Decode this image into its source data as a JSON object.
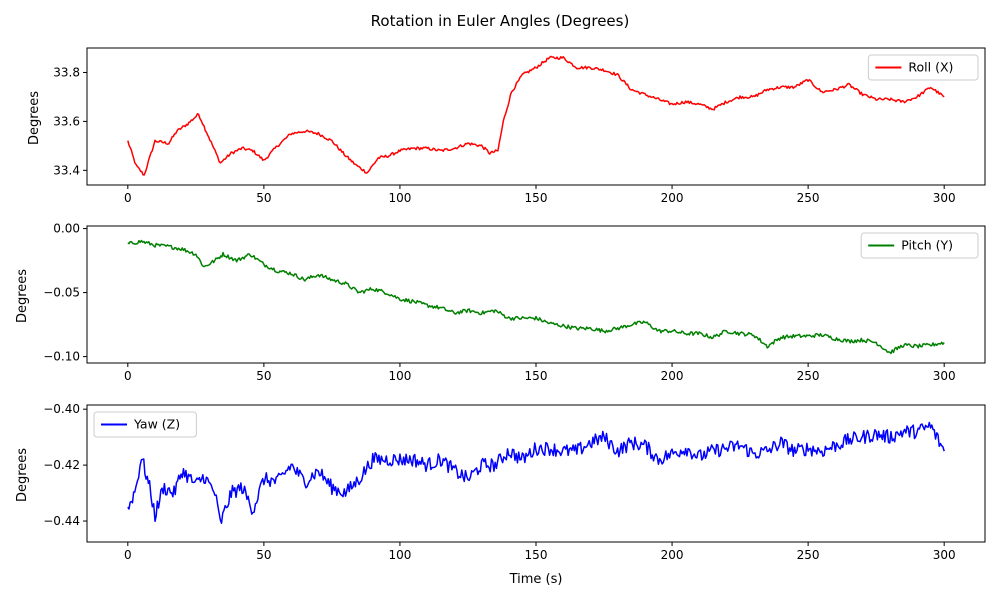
{
  "figure": {
    "title": "Rotation in Euler Angles (Degrees)"
  },
  "chart_data": [
    {
      "type": "line",
      "title": "",
      "xlabel": "",
      "ylabel": "Degrees",
      "xlim": [
        -15,
        315
      ],
      "ylim": [
        33.34,
        33.9
      ],
      "xticks": [
        0,
        50,
        100,
        150,
        200,
        250,
        300
      ],
      "yticks": [
        33.4,
        33.6,
        33.8
      ],
      "ytick_labels": [
        "33.4",
        "33.6",
        "33.8"
      ],
      "show_xlabels": true,
      "grid": false,
      "legend_position": "top-right",
      "series": [
        {
          "name": "Roll (X)",
          "color": "#ff0000",
          "x": [
            0,
            3,
            6,
            8,
            10,
            15,
            18,
            22,
            26,
            28,
            32,
            34,
            38,
            42,
            46,
            50,
            55,
            60,
            65,
            70,
            75,
            80,
            84,
            88,
            92,
            96,
            100,
            105,
            110,
            115,
            120,
            125,
            130,
            133,
            136,
            138,
            141,
            145,
            150,
            155,
            160,
            165,
            170,
            175,
            180,
            185,
            190,
            195,
            200,
            205,
            210,
            215,
            220,
            225,
            230,
            235,
            240,
            245,
            250,
            255,
            260,
            265,
            270,
            275,
            280,
            285,
            290,
            295,
            300
          ],
          "y": [
            33.52,
            33.42,
            33.38,
            33.45,
            33.52,
            33.51,
            33.56,
            33.59,
            33.63,
            33.58,
            33.48,
            33.43,
            33.47,
            33.49,
            33.48,
            33.44,
            33.5,
            33.55,
            33.56,
            33.55,
            33.52,
            33.46,
            33.42,
            33.39,
            33.45,
            33.46,
            33.48,
            33.49,
            33.49,
            33.48,
            33.49,
            33.51,
            33.5,
            33.47,
            33.48,
            33.6,
            33.72,
            33.79,
            33.82,
            33.86,
            33.86,
            33.82,
            33.82,
            33.81,
            33.79,
            33.73,
            33.71,
            33.69,
            33.67,
            33.68,
            33.67,
            33.65,
            33.68,
            33.7,
            33.7,
            33.73,
            33.74,
            33.74,
            33.77,
            33.72,
            33.73,
            33.75,
            33.71,
            33.69,
            33.69,
            33.68,
            33.7,
            33.74,
            33.7
          ],
          "noise": 0.006
        }
      ]
    },
    {
      "type": "line",
      "title": "",
      "xlabel": "",
      "ylabel": "Degrees",
      "xlim": [
        -15,
        315
      ],
      "ylim": [
        -0.105,
        0.002
      ],
      "xticks": [
        0,
        50,
        100,
        150,
        200,
        250,
        300
      ],
      "yticks": [
        0.0,
        -0.05,
        -0.1
      ],
      "ytick_labels": [
        "0.00",
        "−0.05",
        "−0.10"
      ],
      "show_xlabels": true,
      "grid": false,
      "legend_position": "top-right",
      "series": [
        {
          "name": "Pitch (Y)",
          "color": "#008000",
          "x": [
            0,
            5,
            10,
            15,
            20,
            25,
            28,
            32,
            35,
            40,
            45,
            50,
            55,
            60,
            65,
            70,
            75,
            80,
            85,
            90,
            95,
            100,
            105,
            110,
            115,
            120,
            125,
            130,
            135,
            140,
            145,
            150,
            155,
            160,
            165,
            170,
            175,
            180,
            185,
            190,
            195,
            200,
            205,
            210,
            215,
            220,
            225,
            230,
            235,
            240,
            245,
            250,
            255,
            260,
            265,
            270,
            275,
            280,
            285,
            290,
            295,
            300
          ],
          "y": [
            -0.012,
            -0.01,
            -0.013,
            -0.014,
            -0.016,
            -0.02,
            -0.03,
            -0.025,
            -0.02,
            -0.025,
            -0.02,
            -0.028,
            -0.033,
            -0.035,
            -0.04,
            -0.036,
            -0.04,
            -0.043,
            -0.05,
            -0.047,
            -0.05,
            -0.055,
            -0.057,
            -0.06,
            -0.062,
            -0.066,
            -0.064,
            -0.066,
            -0.064,
            -0.07,
            -0.07,
            -0.07,
            -0.074,
            -0.076,
            -0.078,
            -0.078,
            -0.08,
            -0.078,
            -0.075,
            -0.073,
            -0.08,
            -0.08,
            -0.082,
            -0.082,
            -0.085,
            -0.08,
            -0.082,
            -0.083,
            -0.092,
            -0.085,
            -0.084,
            -0.084,
            -0.083,
            -0.086,
            -0.088,
            -0.087,
            -0.089,
            -0.097,
            -0.091,
            -0.092,
            -0.091,
            -0.089
          ],
          "noise": 0.0015
        }
      ]
    },
    {
      "type": "line",
      "title": "",
      "xlabel": "Time (s)",
      "ylabel": "Degrees",
      "xlim": [
        -15,
        315
      ],
      "ylim": [
        -0.4475,
        -0.3985
      ],
      "xticks": [
        0,
        50,
        100,
        150,
        200,
        250,
        300
      ],
      "yticks": [
        -0.4,
        -0.42,
        -0.44
      ],
      "ytick_labels": [
        "−0.40",
        "−0.42",
        "−0.44"
      ],
      "show_xlabels": true,
      "grid": false,
      "legend_position": "top-left",
      "series": [
        {
          "name": "Yaw (Z)",
          "color": "#0000ff",
          "x": [
            0,
            3,
            5,
            8,
            10,
            13,
            17,
            20,
            25,
            28,
            32,
            34,
            38,
            42,
            46,
            50,
            55,
            60,
            65,
            70,
            75,
            80,
            85,
            90,
            95,
            100,
            105,
            110,
            115,
            120,
            125,
            130,
            135,
            140,
            145,
            150,
            155,
            160,
            165,
            170,
            175,
            180,
            185,
            190,
            195,
            200,
            205,
            210,
            215,
            220,
            225,
            230,
            235,
            240,
            245,
            250,
            255,
            260,
            265,
            270,
            275,
            280,
            285,
            290,
            295,
            300
          ],
          "y": [
            -0.436,
            -0.428,
            -0.417,
            -0.428,
            -0.438,
            -0.428,
            -0.43,
            -0.422,
            -0.427,
            -0.424,
            -0.43,
            -0.441,
            -0.43,
            -0.428,
            -0.436,
            -0.425,
            -0.426,
            -0.42,
            -0.426,
            -0.422,
            -0.428,
            -0.43,
            -0.425,
            -0.418,
            -0.418,
            -0.418,
            -0.418,
            -0.42,
            -0.418,
            -0.422,
            -0.425,
            -0.42,
            -0.42,
            -0.415,
            -0.418,
            -0.414,
            -0.414,
            -0.415,
            -0.415,
            -0.412,
            -0.41,
            -0.415,
            -0.412,
            -0.413,
            -0.418,
            -0.416,
            -0.414,
            -0.417,
            -0.415,
            -0.414,
            -0.413,
            -0.416,
            -0.415,
            -0.412,
            -0.415,
            -0.414,
            -0.415,
            -0.413,
            -0.411,
            -0.41,
            -0.409,
            -0.41,
            -0.408,
            -0.408,
            -0.406,
            -0.415
          ],
          "noise": 0.0025
        }
      ]
    }
  ]
}
